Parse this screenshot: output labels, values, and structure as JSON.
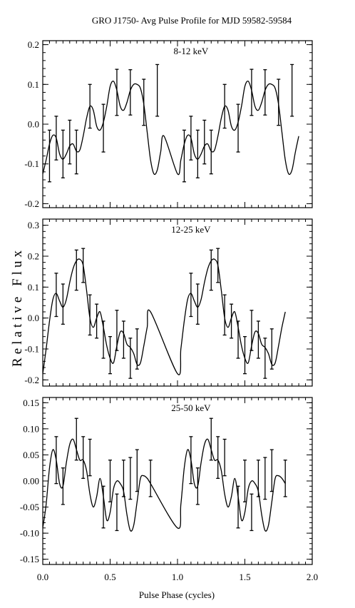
{
  "chart_data": {
    "type": "line",
    "title": "GRO J1750- Avg Pulse Profile for MJD 59582-59584",
    "xlabel": "Pulse Phase (cycles)",
    "ylabel": "Relative Flux",
    "xlim": [
      0.0,
      2.0
    ],
    "x_ticks": [
      "0.0",
      "0.5",
      "1.0",
      "1.5",
      "2.0"
    ],
    "panels": [
      {
        "label": "8-12 keV",
        "ylim": [
          -0.21,
          0.21
        ],
        "y_ticks": [
          "0.2",
          "0.1",
          "0.0",
          "-0.1",
          "-0.2"
        ],
        "y_tick_values": [
          0.2,
          0.1,
          0.0,
          -0.1,
          -0.2
        ],
        "points": [
          {
            "x": 0.05,
            "y": -0.08,
            "err": 0.065
          },
          {
            "x": 0.1,
            "y": -0.035,
            "err": 0.055
          },
          {
            "x": 0.15,
            "y": -0.075,
            "err": 0.06
          },
          {
            "x": 0.2,
            "y": -0.045,
            "err": 0.055
          },
          {
            "x": 0.25,
            "y": -0.07,
            "err": 0.055
          },
          {
            "x": 0.35,
            "y": 0.045,
            "err": 0.055
          },
          {
            "x": 0.45,
            "y": -0.01,
            "err": 0.06
          },
          {
            "x": 0.55,
            "y": 0.08,
            "err": 0.058
          },
          {
            "x": 0.65,
            "y": 0.08,
            "err": 0.057
          },
          {
            "x": 0.75,
            "y": 0.055,
            "err": 0.058
          },
          {
            "x": 0.85,
            "y": 0.085,
            "err": 0.065
          }
        ],
        "curve": [
          [
            0.0,
            -0.125
          ],
          [
            0.025,
            -0.09
          ],
          [
            0.05,
            -0.05
          ],
          [
            0.075,
            -0.028
          ],
          [
            0.1,
            -0.035
          ],
          [
            0.125,
            -0.075
          ],
          [
            0.15,
            -0.088
          ],
          [
            0.175,
            -0.075
          ],
          [
            0.2,
            -0.055
          ],
          [
            0.225,
            -0.05
          ],
          [
            0.25,
            -0.068
          ],
          [
            0.275,
            -0.065
          ],
          [
            0.3,
            -0.03
          ],
          [
            0.325,
            0.015
          ],
          [
            0.35,
            0.045
          ],
          [
            0.375,
            0.035
          ],
          [
            0.4,
            -0.005
          ],
          [
            0.425,
            -0.015
          ],
          [
            0.45,
            0.005
          ],
          [
            0.475,
            0.045
          ],
          [
            0.5,
            0.095
          ],
          [
            0.525,
            0.108
          ],
          [
            0.55,
            0.085
          ],
          [
            0.575,
            0.045
          ],
          [
            0.6,
            0.035
          ],
          [
            0.625,
            0.055
          ],
          [
            0.65,
            0.085
          ],
          [
            0.675,
            0.1
          ],
          [
            0.7,
            0.1
          ],
          [
            0.725,
            0.09
          ],
          [
            0.75,
            0.05
          ],
          [
            0.775,
            -0.02
          ],
          [
            0.8,
            -0.09
          ],
          [
            0.825,
            -0.125
          ],
          [
            0.85,
            -0.115
          ],
          [
            0.875,
            -0.07
          ],
          [
            0.9,
            -0.03
          ]
        ]
      },
      {
        "label": "12-25 keV",
        "ylim": [
          -0.22,
          0.32
        ],
        "y_ticks": [
          "0.3",
          "0.2",
          "0.1",
          "0.0",
          "-0.1",
          "-0.2"
        ],
        "y_tick_values": [
          0.3,
          0.2,
          0.1,
          0.0,
          -0.1,
          -0.2
        ],
        "points": [
          {
            "x": 0.1,
            "y": 0.075,
            "err": 0.07
          },
          {
            "x": 0.15,
            "y": 0.045,
            "err": 0.065
          },
          {
            "x": 0.25,
            "y": 0.155,
            "err": 0.065
          },
          {
            "x": 0.3,
            "y": 0.17,
            "err": 0.055
          },
          {
            "x": 0.35,
            "y": 0.01,
            "err": 0.065
          },
          {
            "x": 0.4,
            "y": -0.01,
            "err": 0.055
          },
          {
            "x": 0.45,
            "y": -0.07,
            "err": 0.06
          },
          {
            "x": 0.5,
            "y": -0.12,
            "err": 0.06
          },
          {
            "x": 0.55,
            "y": -0.04,
            "err": 0.065
          },
          {
            "x": 0.6,
            "y": -0.07,
            "err": 0.06
          },
          {
            "x": 0.65,
            "y": -0.13,
            "err": 0.065
          },
          {
            "x": 0.7,
            "y": -0.1,
            "err": 0.065
          }
        ],
        "curve": [
          [
            0.0,
            -0.18
          ],
          [
            0.025,
            -0.1
          ],
          [
            0.05,
            -0.01
          ],
          [
            0.075,
            0.06
          ],
          [
            0.1,
            0.08
          ],
          [
            0.125,
            0.055
          ],
          [
            0.15,
            0.035
          ],
          [
            0.175,
            0.06
          ],
          [
            0.2,
            0.115
          ],
          [
            0.225,
            0.16
          ],
          [
            0.25,
            0.185
          ],
          [
            0.275,
            0.19
          ],
          [
            0.3,
            0.17
          ],
          [
            0.325,
            0.09
          ],
          [
            0.35,
            0.0
          ],
          [
            0.375,
            -0.03
          ],
          [
            0.4,
            0.0
          ],
          [
            0.425,
            0.02
          ],
          [
            0.45,
            -0.03
          ],
          [
            0.475,
            -0.09
          ],
          [
            0.5,
            -0.13
          ],
          [
            0.525,
            -0.145
          ],
          [
            0.55,
            -0.09
          ],
          [
            0.575,
            -0.045
          ],
          [
            0.6,
            -0.05
          ],
          [
            0.625,
            -0.085
          ],
          [
            0.65,
            -0.095
          ],
          [
            0.675,
            -0.115
          ],
          [
            0.7,
            -0.15
          ],
          [
            0.725,
            -0.145
          ],
          [
            0.75,
            -0.09
          ],
          [
            0.775,
            -0.03
          ],
          [
            0.8,
            0.02
          ]
        ]
      },
      {
        "label": "25-50 keV",
        "ylim": [
          -0.16,
          0.16
        ],
        "y_ticks": [
          "0.15",
          "0.10",
          "0.05",
          "0.00",
          "-0.05",
          "-0.10",
          "-0.15"
        ],
        "y_tick_values": [
          0.15,
          0.1,
          0.05,
          0.0,
          -0.05,
          -0.1,
          -0.15
        ],
        "points": [
          {
            "x": 0.1,
            "y": 0.04,
            "err": 0.045
          },
          {
            "x": 0.15,
            "y": -0.01,
            "err": 0.035
          },
          {
            "x": 0.25,
            "y": 0.08,
            "err": 0.04
          },
          {
            "x": 0.3,
            "y": 0.045,
            "err": 0.04
          },
          {
            "x": 0.35,
            "y": 0.045,
            "err": 0.035
          },
          {
            "x": 0.45,
            "y": -0.05,
            "err": 0.04
          },
          {
            "x": 0.5,
            "y": 0.0,
            "err": 0.04
          },
          {
            "x": 0.55,
            "y": -0.06,
            "err": 0.035
          },
          {
            "x": 0.6,
            "y": 0.005,
            "err": 0.035
          },
          {
            "x": 0.65,
            "y": 0.005,
            "err": 0.04
          },
          {
            "x": 0.7,
            "y": 0.02,
            "err": 0.04
          },
          {
            "x": 0.8,
            "y": 0.005,
            "err": 0.035
          }
        ],
        "curve": [
          [
            0.0,
            -0.09
          ],
          [
            0.025,
            -0.045
          ],
          [
            0.05,
            0.025
          ],
          [
            0.075,
            0.06
          ],
          [
            0.1,
            0.04
          ],
          [
            0.125,
            -0.005
          ],
          [
            0.15,
            -0.01
          ],
          [
            0.175,
            0.035
          ],
          [
            0.2,
            0.07
          ],
          [
            0.225,
            0.08
          ],
          [
            0.25,
            0.06
          ],
          [
            0.275,
            0.04
          ],
          [
            0.3,
            0.04
          ],
          [
            0.325,
            0.02
          ],
          [
            0.35,
            -0.025
          ],
          [
            0.375,
            -0.05
          ],
          [
            0.4,
            -0.03
          ],
          [
            0.425,
            0.005
          ],
          [
            0.45,
            -0.03
          ],
          [
            0.475,
            -0.075
          ],
          [
            0.5,
            -0.06
          ],
          [
            0.525,
            -0.015
          ],
          [
            0.55,
            0.0
          ],
          [
            0.575,
            -0.005
          ],
          [
            0.6,
            -0.02
          ],
          [
            0.625,
            -0.065
          ],
          [
            0.65,
            -0.095
          ],
          [
            0.675,
            -0.085
          ],
          [
            0.7,
            -0.04
          ],
          [
            0.725,
            0.005
          ],
          [
            0.75,
            0.01
          ],
          [
            0.775,
            0.005
          ],
          [
            0.8,
            -0.005
          ]
        ]
      }
    ]
  }
}
